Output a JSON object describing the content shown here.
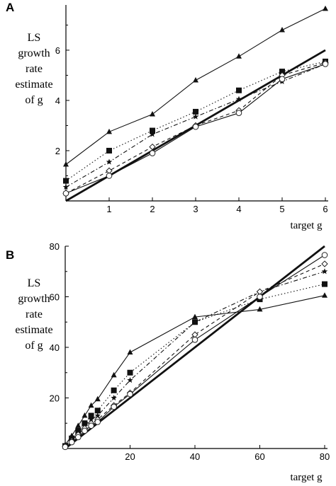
{
  "chart_data": [
    {
      "type": "line",
      "panel_label": "A",
      "ylabel_lines": [
        "LS",
        "growth",
        "rate",
        "estimate",
        "of g"
      ],
      "xlabel": "target g",
      "xlim": [
        0,
        6
      ],
      "ylim": [
        0,
        7.8
      ],
      "xticks": [
        1,
        2,
        3,
        4,
        5,
        6
      ],
      "yticks": [
        2,
        4,
        6
      ],
      "series": [
        {
          "marker": "line",
          "style": "solid-thick",
          "x": [
            0,
            6
          ],
          "y": [
            0,
            6
          ]
        },
        {
          "marker": "triangle",
          "style": "solid",
          "x": [
            0,
            1,
            2,
            3,
            4,
            5,
            6
          ],
          "y": [
            1.45,
            2.75,
            3.45,
            4.8,
            5.75,
            6.8,
            7.65
          ]
        },
        {
          "marker": "square",
          "style": "dotted",
          "x": [
            0,
            1,
            2,
            3,
            4,
            5,
            6
          ],
          "y": [
            0.8,
            2.0,
            2.8,
            3.55,
            4.4,
            5.15,
            5.55
          ]
        },
        {
          "marker": "star",
          "style": "dashdot",
          "x": [
            0,
            1,
            2,
            3,
            4,
            5,
            6
          ],
          "y": [
            0.55,
            1.55,
            2.65,
            3.35,
            4.05,
            4.75,
            5.45
          ]
        },
        {
          "marker": "diamond",
          "style": "dashed",
          "x": [
            0,
            1,
            2,
            3,
            4,
            5,
            6
          ],
          "y": [
            0.3,
            1.2,
            2.15,
            3.0,
            3.6,
            5.0,
            5.5
          ]
        },
        {
          "marker": "circle",
          "style": "solid",
          "x": [
            0,
            1,
            2,
            3,
            4,
            5,
            6
          ],
          "y": [
            0.3,
            1.0,
            1.9,
            2.95,
            3.5,
            4.85,
            5.45
          ]
        }
      ]
    },
    {
      "type": "line",
      "panel_label": "B",
      "ylabel_lines": [
        "LS",
        "growth",
        "rate",
        "estimate",
        "of g"
      ],
      "xlabel": "target g",
      "xlim": [
        0,
        80
      ],
      "ylim": [
        0,
        80
      ],
      "xticks": [
        20,
        40,
        60,
        80
      ],
      "yticks": [
        20,
        40,
        60,
        80
      ],
      "series": [
        {
          "marker": "line",
          "style": "solid-thick",
          "x": [
            0,
            80
          ],
          "y": [
            0,
            80
          ]
        },
        {
          "marker": "triangle",
          "style": "solid",
          "x": [
            0,
            2,
            4,
            6,
            8,
            10,
            15,
            20,
            40,
            60,
            80
          ],
          "y": [
            1.5,
            5,
            9,
            13,
            17,
            19.5,
            29,
            38,
            52,
            55,
            60.5
          ]
        },
        {
          "marker": "square",
          "style": "dotted",
          "x": [
            0,
            2,
            4,
            6,
            8,
            10,
            15,
            20,
            40,
            60,
            80
          ],
          "y": [
            1,
            4,
            7,
            10,
            13,
            15,
            23,
            30,
            50,
            59,
            65
          ]
        },
        {
          "marker": "star",
          "style": "dashdot",
          "x": [
            0,
            2,
            4,
            6,
            8,
            10,
            15,
            20,
            40,
            60,
            80
          ],
          "y": [
            1,
            3.5,
            6,
            9,
            11.5,
            13,
            20,
            27,
            50,
            62,
            70
          ]
        },
        {
          "marker": "diamond",
          "style": "dashed",
          "x": [
            0,
            2,
            4,
            6,
            8,
            10,
            15,
            20,
            40,
            60,
            80
          ],
          "y": [
            0.8,
            3,
            5.5,
            8,
            10,
            11.5,
            17,
            22,
            45,
            62,
            73
          ]
        },
        {
          "marker": "circle",
          "style": "solid",
          "x": [
            0,
            2,
            4,
            6,
            8,
            10,
            15,
            20,
            40,
            60,
            80
          ],
          "y": [
            0.6,
            2.5,
            4.5,
            7,
            9,
            10.5,
            16.5,
            21.5,
            43,
            60,
            76.5
          ]
        }
      ]
    }
  ]
}
